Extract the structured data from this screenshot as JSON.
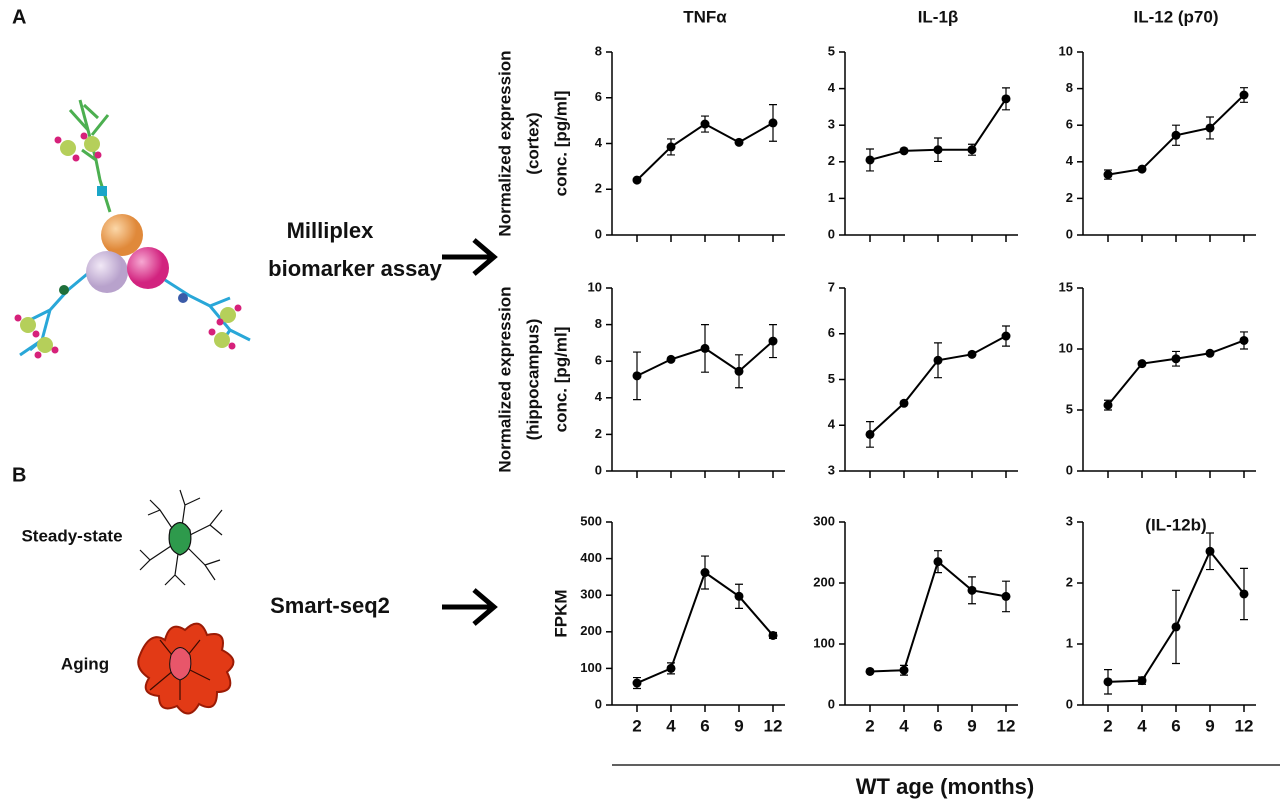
{
  "figure": {
    "panel_a": "A",
    "panel_b": "B",
    "milliplex_label": [
      "Milliplex",
      "biomarker assay"
    ],
    "smartseq_label": "Smart-seq2",
    "steady_state": "Steady-state",
    "aging": "Aging",
    "x_axis_label": "WT age (months)"
  },
  "chart_data": [
    {
      "type": "line",
      "title": "TNFα",
      "ylabel": [
        "Normalized expression",
        "(cortex)",
        "conc. [pg/ml]"
      ],
      "categories": [
        null,
        null,
        null,
        null,
        null
      ],
      "ylim": [
        0,
        8
      ],
      "yticks": [
        0,
        2,
        4,
        6,
        8
      ],
      "series": [
        {
          "color": "#000000",
          "values": [
            2.4,
            3.85,
            4.85,
            4.05,
            4.9
          ],
          "errors": [
            0,
            0.35,
            0.35,
            0,
            0.8
          ]
        }
      ]
    },
    {
      "type": "line",
      "title": "IL-1β",
      "categories": [
        null,
        null,
        null,
        null,
        null
      ],
      "ylim": [
        0,
        5
      ],
      "yticks": [
        0,
        1,
        2,
        3,
        4,
        5
      ],
      "series": [
        {
          "color": "#000000",
          "values": [
            2.05,
            2.3,
            2.33,
            2.33,
            3.72
          ],
          "errors": [
            0.3,
            0,
            0.32,
            0.15,
            0.3
          ]
        }
      ]
    },
    {
      "type": "line",
      "title": "IL-12 (p70)",
      "categories": [
        null,
        null,
        null,
        null,
        null
      ],
      "ylim": [
        0,
        10
      ],
      "yticks": [
        0,
        2,
        4,
        6,
        8,
        10
      ],
      "series": [
        {
          "color": "#000000",
          "values": [
            3.3,
            3.6,
            5.45,
            5.85,
            7.65
          ],
          "errors": [
            0.25,
            0,
            0.55,
            0.6,
            0.4
          ]
        }
      ]
    },
    {
      "type": "line",
      "ylabel": [
        "Normalized expression",
        "(hippocampus)",
        "conc. [pg/ml]"
      ],
      "categories": [
        null,
        null,
        null,
        null,
        null
      ],
      "ylim": [
        0,
        10
      ],
      "yticks": [
        0,
        2,
        4,
        6,
        8,
        10
      ],
      "series": [
        {
          "color": "#000000",
          "values": [
            5.2,
            6.1,
            6.7,
            5.45,
            7.1
          ],
          "errors": [
            1.3,
            0,
            1.3,
            0.9,
            0.9
          ]
        }
      ]
    },
    {
      "type": "line",
      "categories": [
        null,
        null,
        null,
        null,
        null
      ],
      "ylim": [
        3,
        7
      ],
      "yticks": [
        3,
        4,
        5,
        6,
        7
      ],
      "series": [
        {
          "color": "#000000",
          "values": [
            3.8,
            4.48,
            5.42,
            5.55,
            5.95
          ],
          "errors": [
            0.28,
            0,
            0.38,
            0,
            0.22
          ]
        }
      ]
    },
    {
      "type": "line",
      "categories": [
        null,
        null,
        null,
        null,
        null
      ],
      "ylim": [
        0,
        15
      ],
      "yticks": [
        0,
        5,
        10,
        15
      ],
      "series": [
        {
          "color": "#000000",
          "values": [
            5.4,
            8.8,
            9.2,
            9.65,
            10.7
          ],
          "errors": [
            0.4,
            0,
            0.6,
            0,
            0.7
          ]
        }
      ]
    },
    {
      "type": "line",
      "ylabel": [
        "FPKM"
      ],
      "categories": [
        "2",
        "4",
        "6",
        "9",
        "12"
      ],
      "ylim": [
        0,
        500
      ],
      "yticks": [
        0,
        100,
        200,
        300,
        400,
        500
      ],
      "series": [
        {
          "color": "#000000",
          "values": [
            60,
            100,
            362,
            297,
            190
          ],
          "errors": [
            15,
            15,
            45,
            33,
            8
          ]
        }
      ]
    },
    {
      "type": "line",
      "categories": [
        "2",
        "4",
        "6",
        "9",
        "12"
      ],
      "ylim": [
        0,
        300
      ],
      "yticks": [
        0,
        100,
        200,
        300
      ],
      "series": [
        {
          "color": "#000000",
          "values": [
            55,
            57,
            235,
            188,
            178
          ],
          "errors": [
            0,
            8,
            18,
            22,
            25
          ]
        }
      ]
    },
    {
      "type": "line",
      "annotation": "(IL-12b)",
      "categories": [
        "2",
        "4",
        "6",
        "9",
        "12"
      ],
      "ylim": [
        0,
        3
      ],
      "yticks": [
        0,
        1,
        2,
        3
      ],
      "series": [
        {
          "color": "#000000",
          "values": [
            0.38,
            0.4,
            1.28,
            2.52,
            1.82
          ],
          "errors": [
            0.2,
            0.06,
            0.6,
            0.3,
            0.42
          ]
        }
      ]
    }
  ]
}
